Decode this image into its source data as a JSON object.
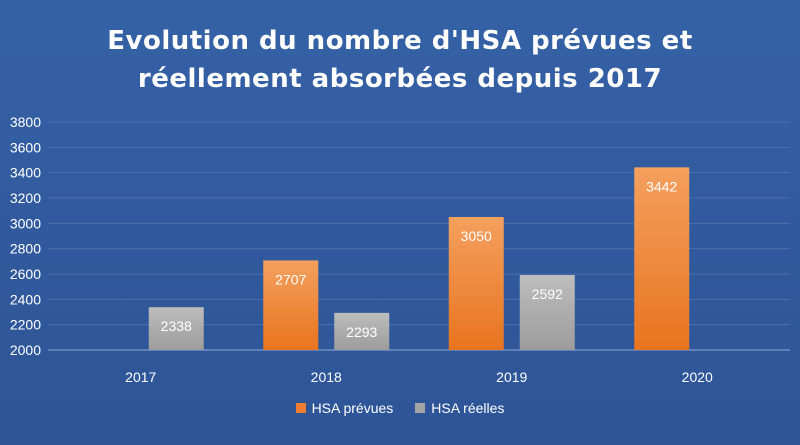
{
  "chart_data": {
    "type": "bar",
    "title": "Evolution du nombre d'HSA prévues et réellement absorbées depuis 2017",
    "title_lines": [
      "Evolution du nombre d'HSA prévues et",
      "réellement absorbées depuis 2017"
    ],
    "categories": [
      "2017",
      "2018",
      "2019",
      "2020"
    ],
    "series": [
      {
        "name": "HSA prévues",
        "color": "#ED7D31",
        "values": [
          null,
          2707,
          3050,
          3442
        ]
      },
      {
        "name": "HSA réelles",
        "color": "#A5A5A5",
        "values": [
          2338,
          2293,
          2592,
          null
        ]
      }
    ],
    "ylim": [
      2000,
      3800
    ],
    "yticks": [
      2000,
      2200,
      2400,
      2600,
      2800,
      3000,
      3200,
      3400,
      3600,
      3800
    ],
    "grid": true,
    "legend_position": "bottom",
    "background_color": "#2F5597"
  }
}
